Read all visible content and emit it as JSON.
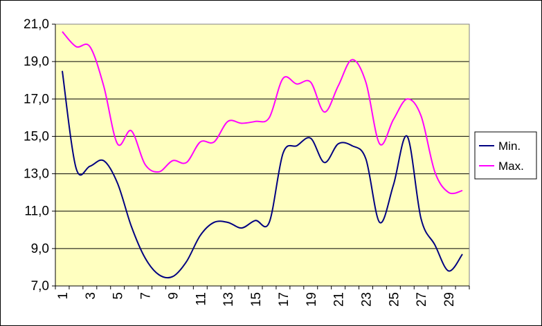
{
  "chart_data": {
    "type": "line",
    "title": "",
    "xlabel": "",
    "ylabel": "",
    "x": [
      1,
      2,
      3,
      4,
      5,
      6,
      7,
      8,
      9,
      10,
      11,
      12,
      13,
      14,
      15,
      16,
      17,
      18,
      19,
      20,
      21,
      22,
      23,
      24,
      25,
      26,
      27,
      28,
      29,
      30
    ],
    "x_tick_labels": [
      "1",
      "3",
      "5",
      "7",
      "9",
      "11",
      "13",
      "15",
      "17",
      "19",
      "21",
      "23",
      "25",
      "27",
      "29"
    ],
    "y_tick_labels": [
      "7,0",
      "9,0",
      "11,0",
      "13,0",
      "15,0",
      "17,0",
      "19,0",
      "21,0"
    ],
    "ylim": [
      7,
      21
    ],
    "ytick_step": 2,
    "grid": "horizontal",
    "legend_position": "right",
    "plot_background": "#ffffc0",
    "series": [
      {
        "name": "Min.",
        "color": "#000080",
        "values": [
          18.5,
          13.3,
          13.4,
          13.7,
          12.5,
          10.2,
          8.5,
          7.6,
          7.5,
          8.3,
          9.7,
          10.4,
          10.4,
          10.1,
          10.5,
          10.4,
          14.1,
          14.5,
          14.9,
          13.6,
          14.6,
          14.5,
          13.8,
          10.4,
          12.4,
          15.0,
          10.6,
          9.2,
          7.8,
          8.7
        ]
      },
      {
        "name": "Max.",
        "color": "#ff00ff",
        "values": [
          20.6,
          19.8,
          19.8,
          17.7,
          14.6,
          15.3,
          13.5,
          13.1,
          13.7,
          13.6,
          14.7,
          14.7,
          15.8,
          15.7,
          15.8,
          16.0,
          18.1,
          17.8,
          17.9,
          16.3,
          17.7,
          19.1,
          17.9,
          14.6,
          15.9,
          17.0,
          16.1,
          13.1,
          12.0,
          12.1
        ]
      }
    ]
  }
}
